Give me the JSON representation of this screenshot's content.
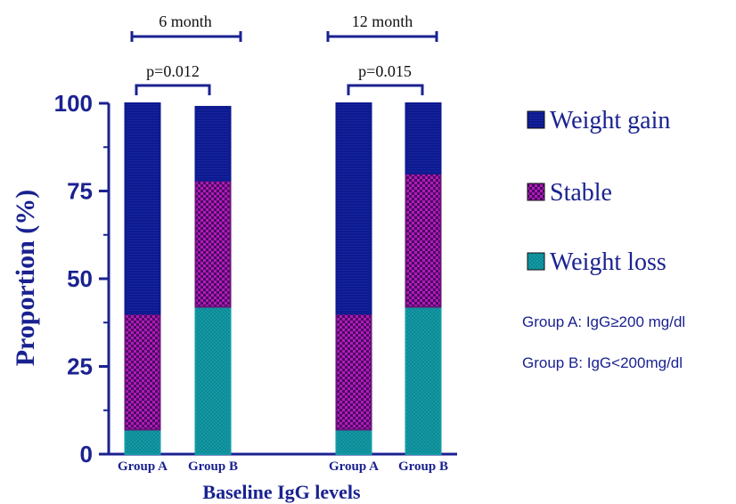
{
  "chart_data": {
    "type": "bar",
    "stacked": true,
    "ylabel": "Proportion (%)",
    "xlabel": "Baseline IgG levels",
    "ylim": [
      0,
      100
    ],
    "yticks": [
      0,
      25,
      50,
      75,
      100
    ],
    "categories": [
      "Group A",
      "Group B",
      "Group A",
      "Group B"
    ],
    "series": [
      {
        "name": "Weight loss",
        "color": "#129aa6",
        "values": [
          7,
          42,
          7,
          42
        ]
      },
      {
        "name": "Stable",
        "color": "#a01aa8",
        "values": [
          33,
          36,
          33,
          38
        ]
      },
      {
        "name": "Weight gain",
        "color": "#0d1a8f",
        "values": [
          60,
          21,
          60,
          20
        ]
      }
    ],
    "legend": {
      "placement": "right",
      "items": [
        "Weight gain",
        "Stable",
        "Weight loss"
      ]
    },
    "groups": [
      {
        "label": "6 month",
        "p_value": "p=0.012"
      },
      {
        "label": "12 month",
        "p_value": "p=0.015"
      }
    ],
    "notes": [
      "Group A: IgG≥200 mg/dl",
      "Group B: IgG<200mg/dl"
    ]
  }
}
